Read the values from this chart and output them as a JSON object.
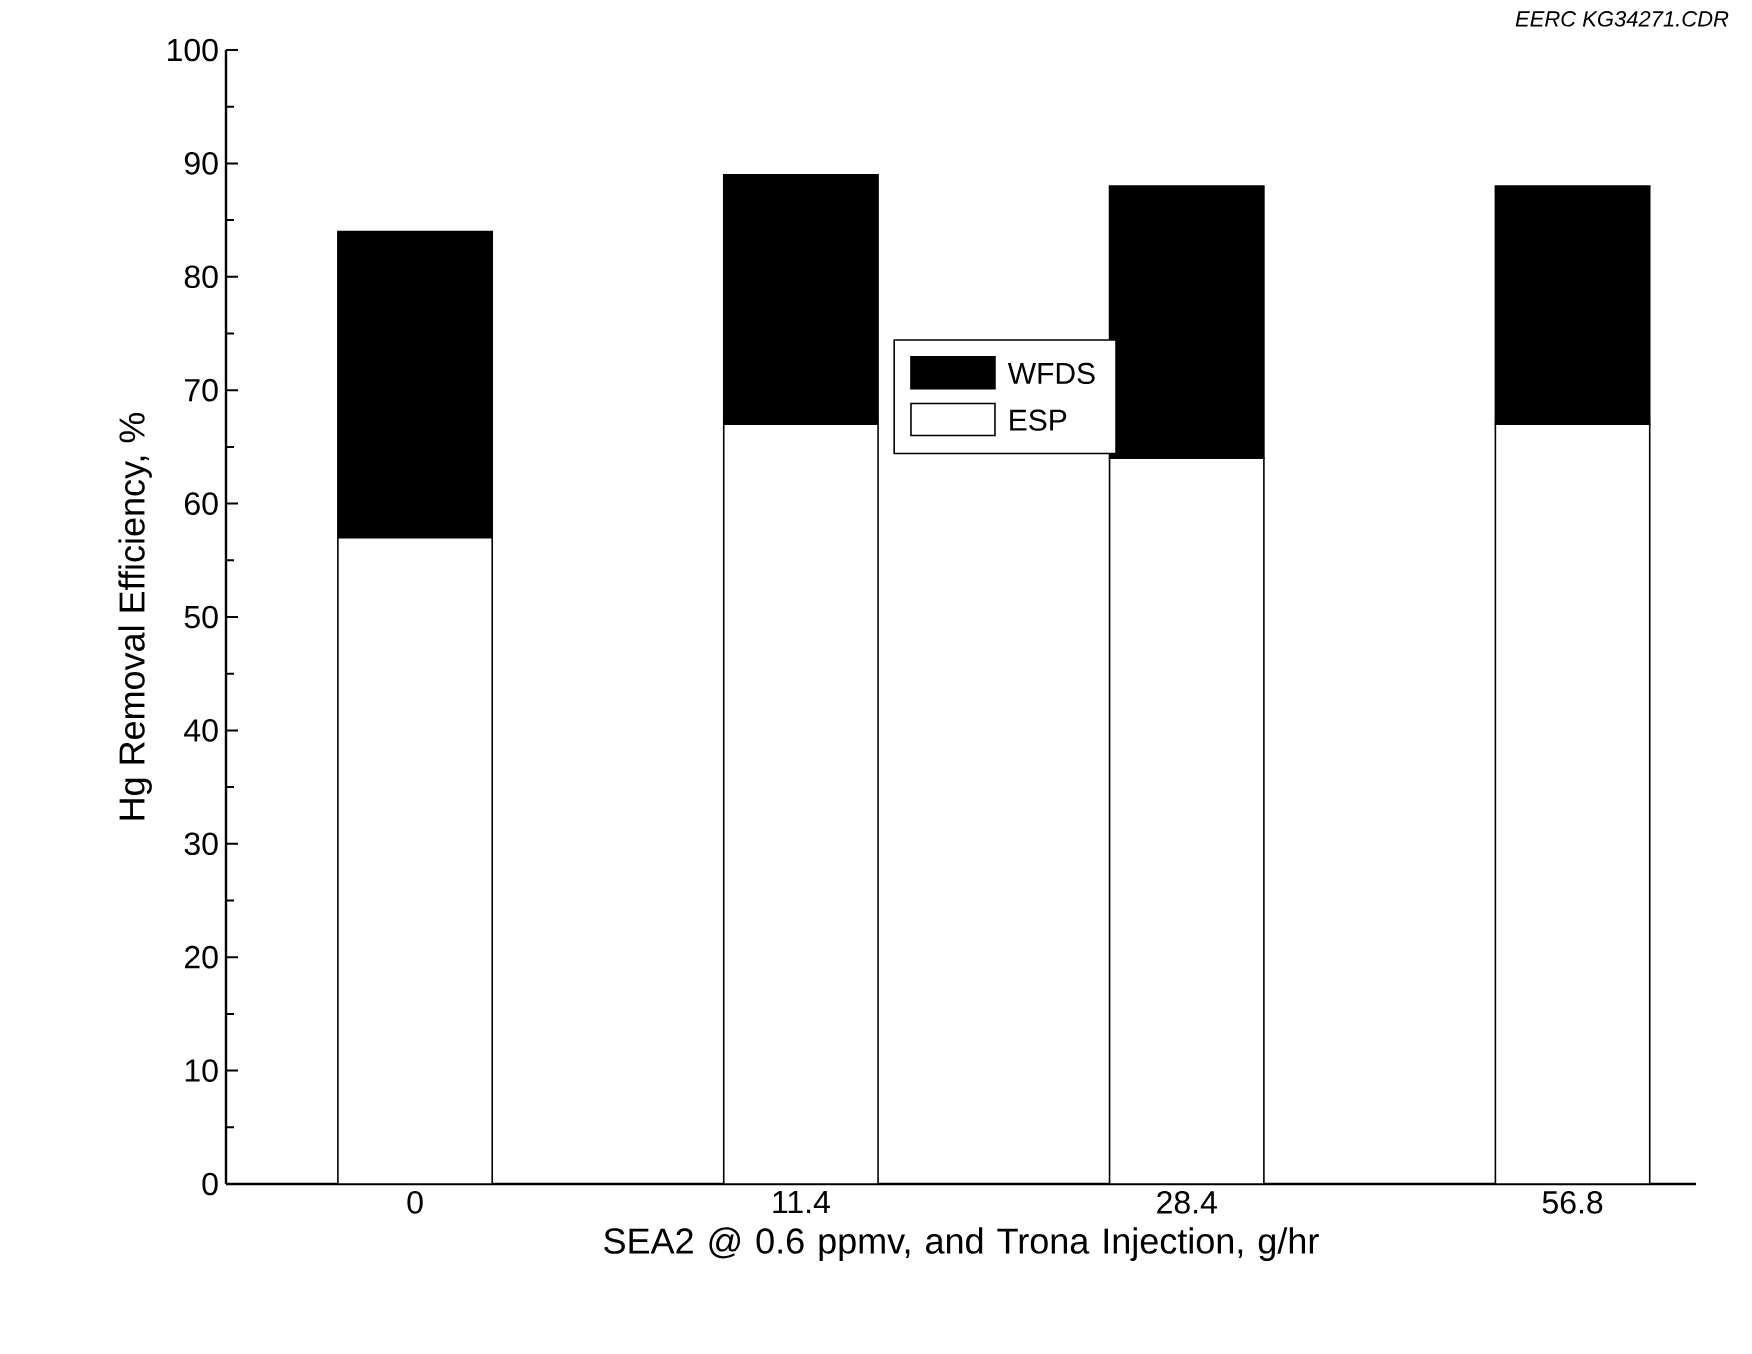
{
  "chart_data": {
    "type": "bar",
    "stacked": true,
    "categories": [
      "0",
      "11.4",
      "28.4",
      "56.8"
    ],
    "series": [
      {
        "name": "ESP",
        "color": "#ffffff",
        "values": [
          57,
          67,
          64,
          67
        ]
      },
      {
        "name": "WFDS",
        "color": "#000000",
        "values": [
          27,
          22,
          24,
          21
        ]
      }
    ],
    "xlabel": "SEA2 @ 0.6 ppmv, and Trona Injection, g/hr",
    "ylabel": "Hg Removal Efficiency, %",
    "ylim": [
      0,
      100
    ],
    "yticks": [
      0,
      10,
      20,
      30,
      40,
      50,
      60,
      70,
      80,
      90,
      100
    ],
    "legend": "top",
    "grid": false,
    "annotations": [
      "*EERC KG34271.CDR*"
    ]
  }
}
